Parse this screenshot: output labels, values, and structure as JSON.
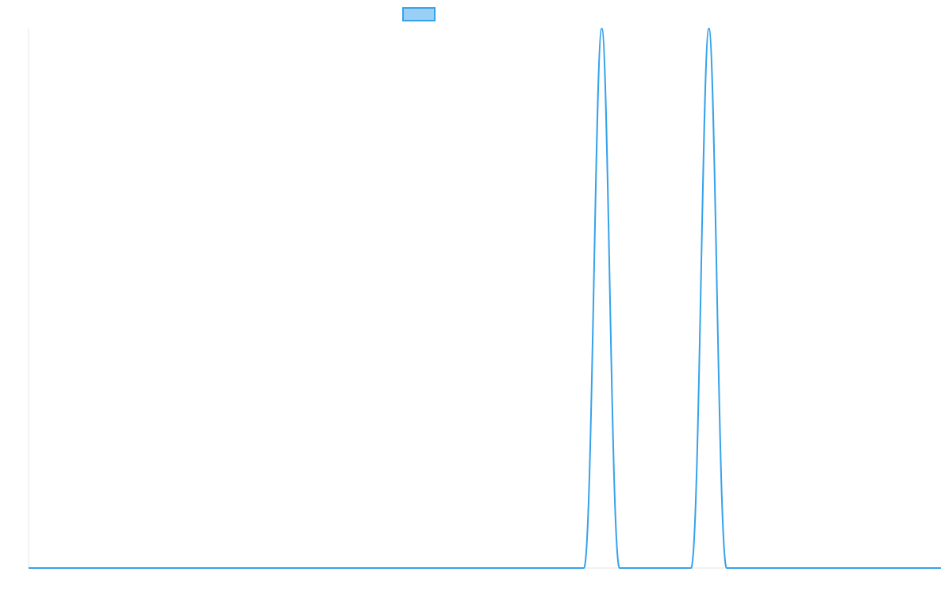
{
  "chart_data": {
    "type": "line",
    "title": "",
    "xlabel": "",
    "ylabel": "",
    "grid": false,
    "legend_position": "top-center",
    "x_range": [
      0,
      1
    ],
    "ylim": [
      0,
      1
    ],
    "series": [
      {
        "color": "#36a2eb",
        "fill_color": "#9ad0f5",
        "x": [
          0,
          0.6087,
          0.6283,
          0.6478,
          0.7261,
          0.7457,
          0.7652,
          1
        ],
        "values": [
          0,
          0,
          1,
          0,
          0,
          1,
          0,
          0
        ]
      }
    ]
  },
  "colors": {
    "axis": "#e6e6e6",
    "background": "#ffffff"
  }
}
